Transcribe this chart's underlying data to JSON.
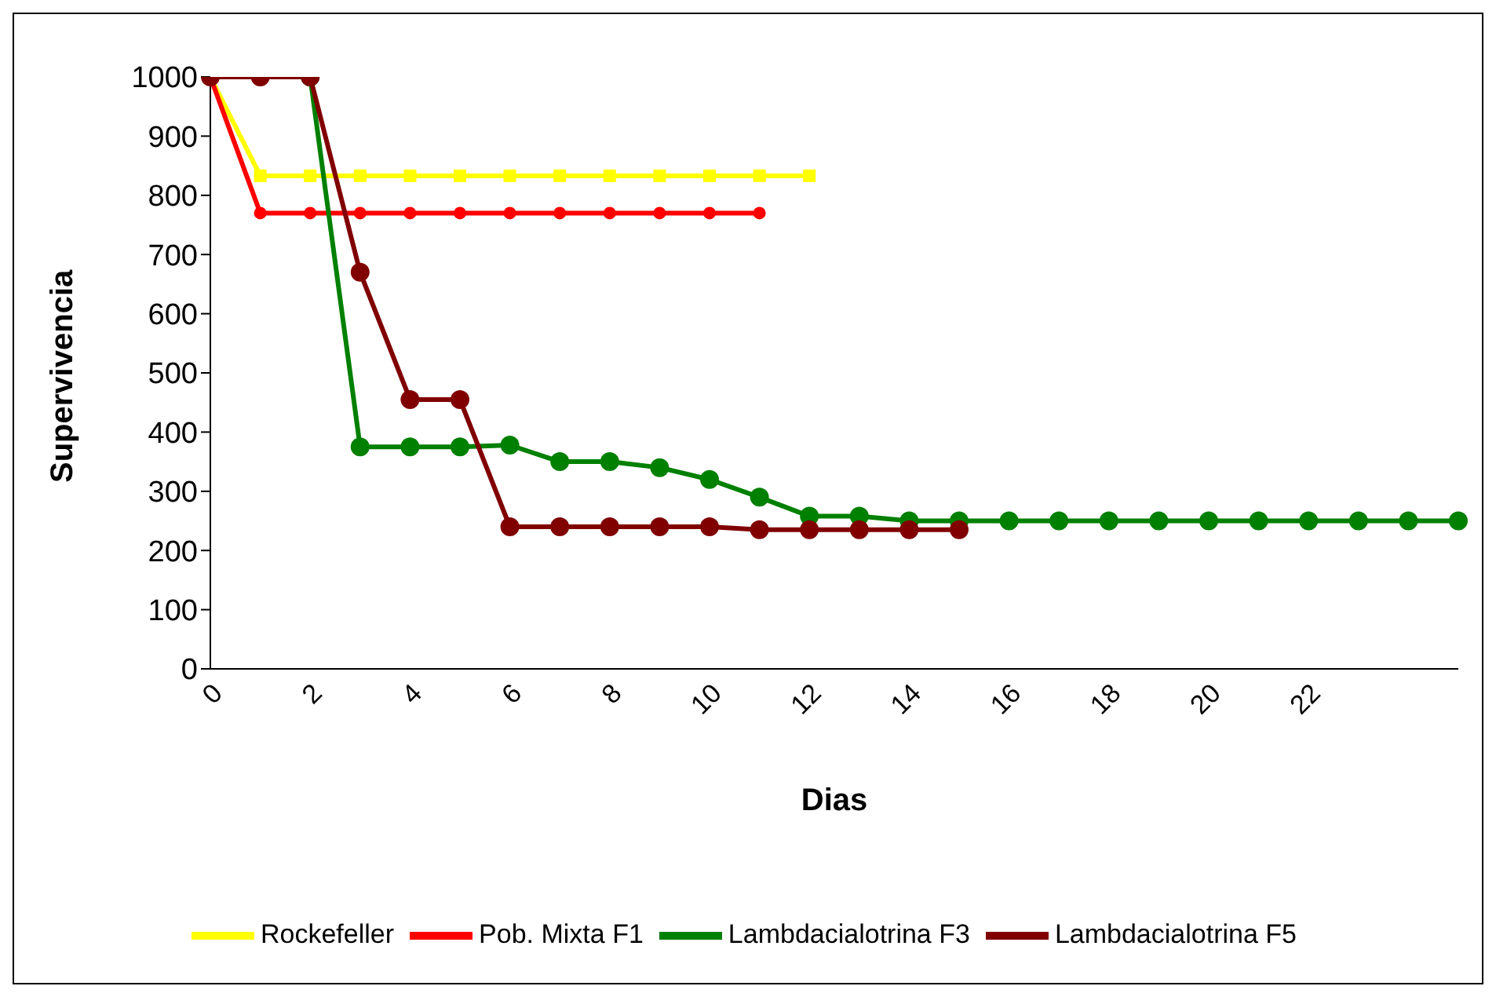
{
  "chart_data": {
    "type": "line",
    "xlabel": "Dias",
    "ylabel": "Supervivencia",
    "categories": [
      "0",
      null,
      "2",
      null,
      "4",
      null,
      "6",
      null,
      "8",
      null,
      "10",
      null,
      "12",
      null,
      "14",
      null,
      "16",
      null,
      "18",
      null,
      "20",
      null,
      "22",
      null,
      null,
      null
    ],
    "ylim": [
      0,
      1000
    ],
    "yticks": [
      0,
      100,
      200,
      300,
      400,
      500,
      600,
      700,
      800,
      900,
      1000
    ],
    "grid": false,
    "legend": "bottom",
    "series": [
      {
        "name": "Rockefeller",
        "color": "#ffff00",
        "marker": "square",
        "values": [
          1000,
          833,
          833,
          833,
          833,
          833,
          833,
          833,
          833,
          833,
          833,
          833,
          833,
          null,
          null,
          null,
          null,
          null,
          null,
          null,
          null,
          null,
          null,
          null,
          null,
          null
        ]
      },
      {
        "name": "Pob. Mixta F1",
        "color": "#ff0000",
        "marker": "circle",
        "values": [
          1000,
          770,
          770,
          770,
          770,
          770,
          770,
          770,
          770,
          770,
          770,
          770,
          null,
          null,
          null,
          null,
          null,
          null,
          null,
          null,
          null,
          null,
          null,
          null,
          null,
          null
        ]
      },
      {
        "name": "Lambdacialotrina F3",
        "color": "#008000",
        "marker": "circle",
        "values": [
          null,
          null,
          1000,
          375,
          375,
          375,
          378,
          350,
          350,
          340,
          320,
          290,
          258,
          258,
          250,
          250,
          250,
          250,
          250,
          250,
          250,
          250,
          250,
          250,
          250,
          250
        ]
      },
      {
        "name": "Lambdacialotrina F5",
        "color": "#800000",
        "marker": "circle",
        "values": [
          1000,
          1000,
          1000,
          670,
          455,
          455,
          240,
          240,
          240,
          240,
          240,
          235,
          235,
          235,
          235,
          235,
          null,
          null,
          null,
          null,
          null,
          null,
          null,
          null,
          null,
          null
        ]
      }
    ]
  }
}
